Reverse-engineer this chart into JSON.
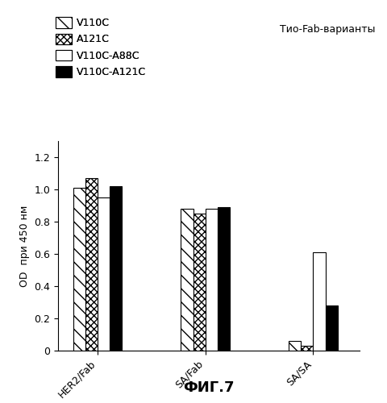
{
  "groups": [
    "HER2/Fab",
    "SA/Fab",
    "SA/SA"
  ],
  "series": [
    {
      "label": "V110C",
      "hatch": "\\\\",
      "facecolor": "white",
      "edgecolor": "black",
      "values": [
        1.01,
        0.88,
        0.06
      ]
    },
    {
      "label": "A121C",
      "hatch": "xxxx",
      "facecolor": "white",
      "edgecolor": "black",
      "values": [
        1.07,
        0.85,
        0.03
      ]
    },
    {
      "label": "V110C-A88C",
      "hatch": "",
      "facecolor": "white",
      "edgecolor": "black",
      "values": [
        0.95,
        0.88,
        0.61
      ]
    },
    {
      "label": "V110C-A121C",
      "hatch": "",
      "facecolor": "black",
      "edgecolor": "black",
      "values": [
        1.02,
        0.89,
        0.28
      ]
    }
  ],
  "ylabel": "OD  при 450 нм",
  "xlabel": "ФИГ.7",
  "annotation": "Тио-Fab-варианты",
  "ylim": [
    0,
    1.3
  ],
  "yticks": [
    0.0,
    0.2,
    0.4,
    0.6,
    0.8,
    1.0,
    1.2
  ],
  "bar_width": 0.17,
  "group_positions": [
    1.0,
    2.5,
    4.0
  ],
  "background_color": "#ffffff",
  "figsize": [
    4.8,
    5.0
  ],
  "dpi": 100
}
